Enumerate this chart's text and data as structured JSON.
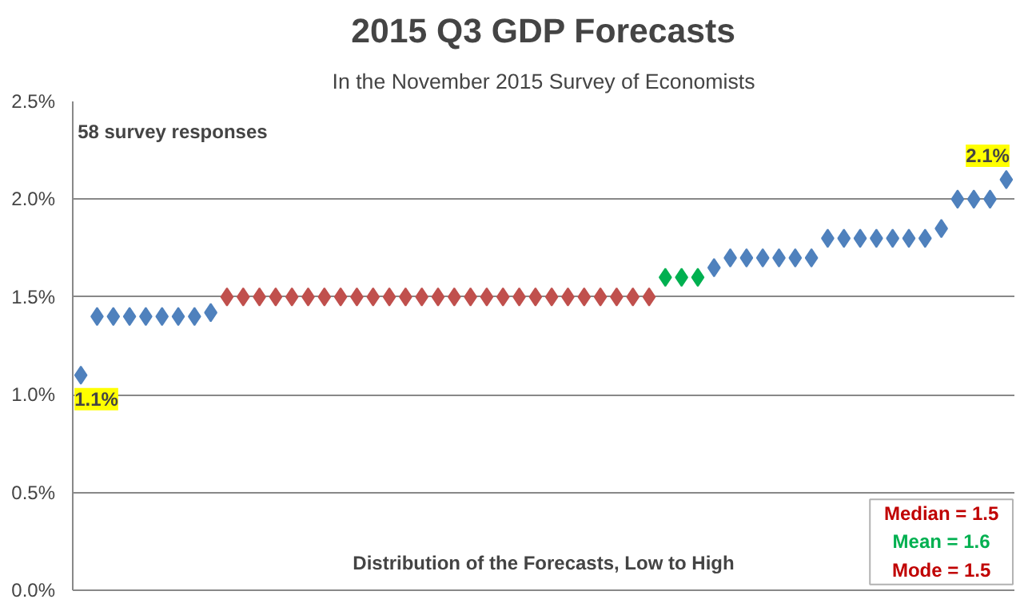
{
  "chart_data": {
    "type": "scatter",
    "title": "2015 Q3 GDP Forecasts",
    "subtitle": "In the November 2015 Survey of Economists",
    "xlabel": "Distribution of the Forecasts, Low to High",
    "annotations": [
      "58 survey responses",
      "Median = 1.5",
      "Mean = 1.6",
      "Mode = 1.5"
    ],
    "categories": [
      null,
      null,
      null,
      null,
      null,
      null,
      null,
      null,
      null,
      null,
      null,
      null,
      null,
      null,
      null,
      null,
      null,
      null,
      null,
      null,
      null,
      null,
      null,
      null,
      null,
      null,
      null,
      null,
      null,
      null,
      null,
      null,
      null,
      null,
      null,
      null,
      null,
      null,
      null,
      null,
      null,
      null,
      null,
      null,
      null,
      null,
      null,
      null,
      null,
      null,
      null,
      null,
      null,
      null,
      null,
      null,
      null,
      null
    ],
    "values": [
      1.1,
      1.4,
      1.4,
      1.4,
      1.4,
      1.4,
      1.4,
      1.4,
      1.42,
      1.5,
      1.5,
      1.5,
      1.5,
      1.5,
      1.5,
      1.5,
      1.5,
      1.5,
      1.5,
      1.5,
      1.5,
      1.5,
      1.5,
      1.5,
      1.5,
      1.5,
      1.5,
      1.5,
      1.5,
      1.5,
      1.5,
      1.5,
      1.5,
      1.5,
      1.5,
      1.5,
      1.6,
      1.6,
      1.6,
      1.65,
      1.7,
      1.7,
      1.7,
      1.7,
      1.7,
      1.7,
      1.8,
      1.8,
      1.8,
      1.8,
      1.8,
      1.8,
      1.8,
      1.85,
      2.0,
      2.0,
      2.0,
      2.1
    ],
    "colors": [
      "#4f81bd",
      "#4f81bd",
      "#4f81bd",
      "#4f81bd",
      "#4f81bd",
      "#4f81bd",
      "#4f81bd",
      "#4f81bd",
      "#4f81bd",
      "#c0504d",
      "#c0504d",
      "#c0504d",
      "#c0504d",
      "#c0504d",
      "#c0504d",
      "#c0504d",
      "#c0504d",
      "#c0504d",
      "#c0504d",
      "#c0504d",
      "#c0504d",
      "#c0504d",
      "#c0504d",
      "#c0504d",
      "#c0504d",
      "#c0504d",
      "#c0504d",
      "#c0504d",
      "#c0504d",
      "#c0504d",
      "#c0504d",
      "#c0504d",
      "#c0504d",
      "#c0504d",
      "#c0504d",
      "#c0504d",
      "#00b050",
      "#00b050",
      "#00b050",
      "#4f81bd",
      "#4f81bd",
      "#4f81bd",
      "#4f81bd",
      "#4f81bd",
      "#4f81bd",
      "#4f81bd",
      "#4f81bd",
      "#4f81bd",
      "#4f81bd",
      "#4f81bd",
      "#4f81bd",
      "#4f81bd",
      "#4f81bd",
      "#4f81bd",
      "#4f81bd",
      "#4f81bd",
      "#4f81bd",
      "#4f81bd"
    ],
    "value_labels": [
      "1.1%",
      null,
      null,
      null,
      null,
      null,
      null,
      null,
      null,
      null,
      null,
      null,
      null,
      null,
      null,
      null,
      null,
      null,
      null,
      null,
      null,
      null,
      null,
      null,
      null,
      null,
      null,
      null,
      null,
      null,
      null,
      null,
      null,
      null,
      null,
      null,
      null,
      null,
      null,
      null,
      null,
      null,
      null,
      null,
      null,
      null,
      null,
      null,
      null,
      null,
      null,
      null,
      null,
      null,
      null,
      null,
      null,
      "2.1%"
    ],
    "ylim": [
      0,
      2.5
    ],
    "yticks": [
      {
        "value": 0,
        "label": "0.0%"
      },
      {
        "value": 0.5,
        "label": "0.5%"
      },
      {
        "value": 1.0,
        "label": "1.0%"
      },
      {
        "value": 1.5,
        "label": "1.5%"
      },
      {
        "value": 2.0,
        "label": "2.0%"
      },
      {
        "value": 2.5,
        "label": "2.5%"
      }
    ],
    "grid": "y",
    "marker": "diamond",
    "tick_labels": "y"
  }
}
